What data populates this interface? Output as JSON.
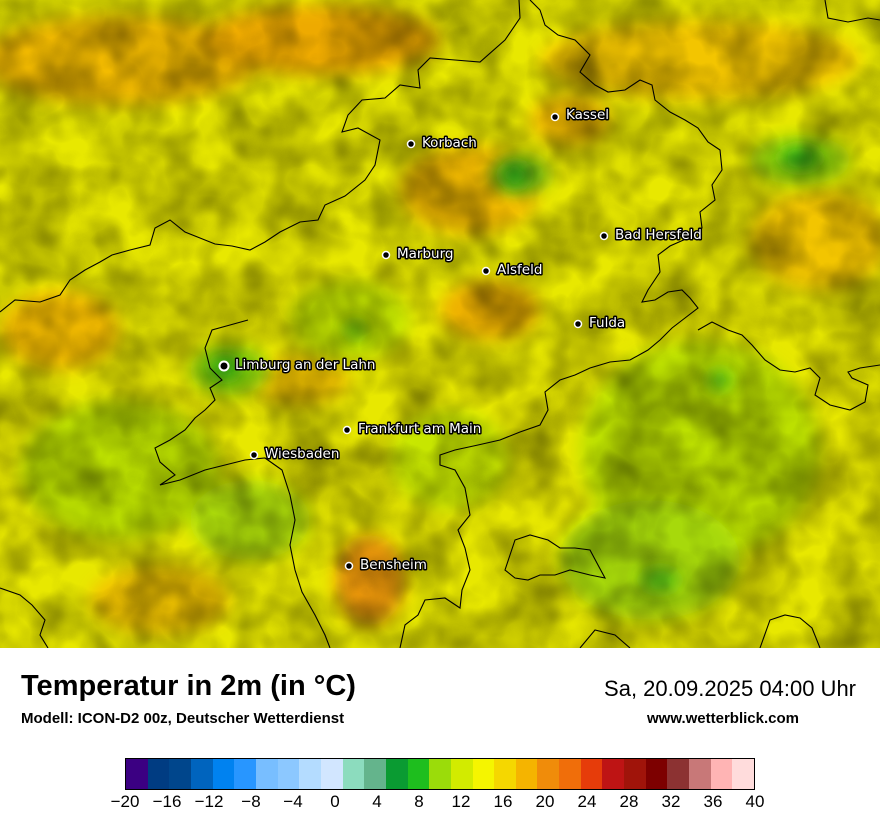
{
  "map": {
    "cities": [
      {
        "name": "Kassel"
      },
      {
        "name": "Korbach"
      },
      {
        "name": "Bad Hersfeld"
      },
      {
        "name": "Marburg"
      },
      {
        "name": "Alsfeld"
      },
      {
        "name": "Fulda"
      },
      {
        "name": "Limburg an der Lahn"
      },
      {
        "name": "Frankfurt am Main"
      },
      {
        "name": "Wiesbaden"
      },
      {
        "name": "Bensheim"
      }
    ]
  },
  "footer": {
    "title": "Temperatur in 2m (in °C)",
    "subtitle": "Modell: ICON-D2 00z, Deutscher Wetterdienst",
    "datetime": "Sa, 20.09.2025 04:00 Uhr",
    "website": "www.wetterblick.com"
  },
  "legend": {
    "ticks": [
      "−20",
      "−16",
      "−12",
      "−8",
      "−4",
      "0",
      "4",
      "8",
      "12",
      "16",
      "20",
      "24",
      "28",
      "32",
      "36",
      "40"
    ],
    "colors": [
      "#3b0082",
      "#003c82",
      "#00468c",
      "#0064be",
      "#0082f0",
      "#2896ff",
      "#78beff",
      "#8cc8ff",
      "#b4dcff",
      "#d2e6ff",
      "#8cdcbe",
      "#64b48c",
      "#0a9b32",
      "#1ebe1e",
      "#9bdc0a",
      "#d2eb00",
      "#f5f500",
      "#f5d700",
      "#f5b400",
      "#f08c0a",
      "#f06e0a",
      "#e63c0a",
      "#be1414",
      "#a0140a",
      "#7d0000",
      "#8c3232",
      "#c87878",
      "#ffb4b4",
      "#ffdcdc"
    ],
    "range": [
      -20,
      40
    ]
  }
}
